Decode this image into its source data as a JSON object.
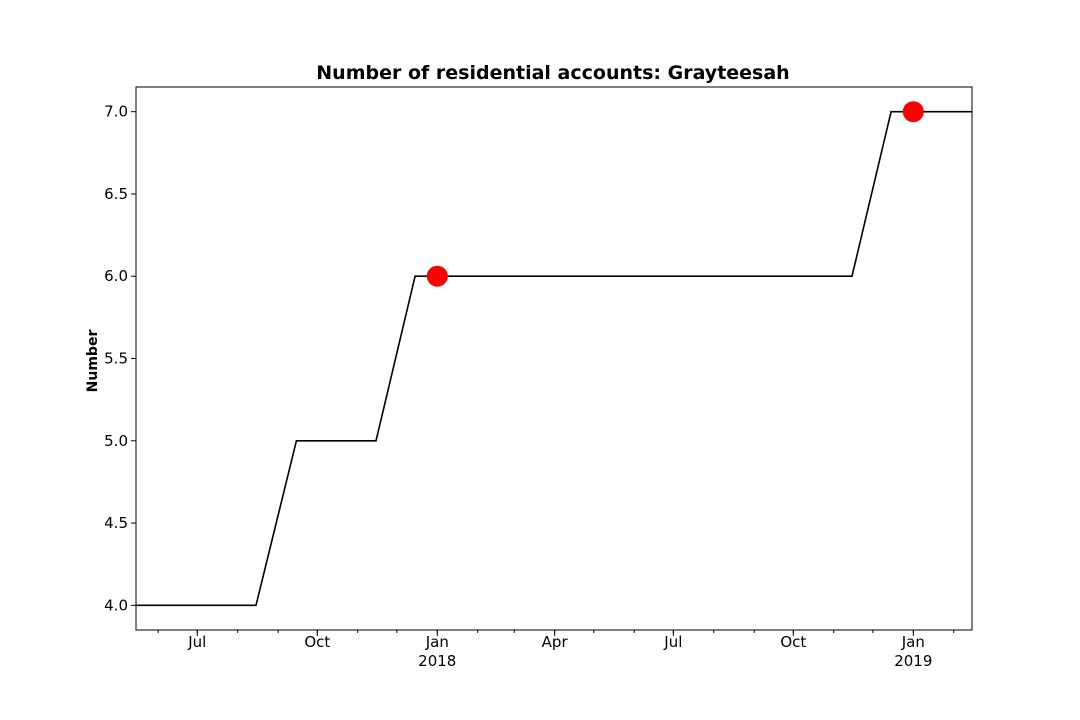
{
  "chart_data": {
    "type": "line",
    "title": "Number of residential accounts: Grayteesah",
    "xlabel": "",
    "ylabel": "Number",
    "xlim": [
      "2017-05-15",
      "2019-02-15"
    ],
    "ylim": [
      3.85,
      7.15
    ],
    "yticks": [
      4.0,
      4.5,
      5.0,
      5.5,
      6.0,
      6.5,
      7.0
    ],
    "ytick_labels": [
      "4.0",
      "4.5",
      "5.0",
      "5.5",
      "6.0",
      "6.5",
      "7.0"
    ],
    "xticks": [
      {
        "date": "2017-07-01",
        "label": "Jul",
        "sublabel": ""
      },
      {
        "date": "2017-10-01",
        "label": "Oct",
        "sublabel": ""
      },
      {
        "date": "2018-01-01",
        "label": "Jan",
        "sublabel": "2018"
      },
      {
        "date": "2018-04-01",
        "label": "Apr",
        "sublabel": ""
      },
      {
        "date": "2018-07-01",
        "label": "Jul",
        "sublabel": ""
      },
      {
        "date": "2018-10-01",
        "label": "Oct",
        "sublabel": ""
      },
      {
        "date": "2019-01-01",
        "label": "Jan",
        "sublabel": "2019"
      }
    ],
    "series": [
      {
        "color": "#000000",
        "points": [
          {
            "x": "2017-05-15",
            "y": 4
          },
          {
            "x": "2017-08-15",
            "y": 4
          },
          {
            "x": "2017-09-15",
            "y": 5
          },
          {
            "x": "2017-11-15",
            "y": 5
          },
          {
            "x": "2017-12-15",
            "y": 6
          },
          {
            "x": "2018-11-15",
            "y": 6
          },
          {
            "x": "2018-12-15",
            "y": 7
          },
          {
            "x": "2019-02-15",
            "y": 7
          }
        ]
      }
    ],
    "markers": {
      "color": "#ff0000",
      "points": [
        {
          "x": "2018-01-01",
          "y": 6
        },
        {
          "x": "2019-01-01",
          "y": 7
        }
      ]
    },
    "grid": false,
    "legend": "none"
  }
}
